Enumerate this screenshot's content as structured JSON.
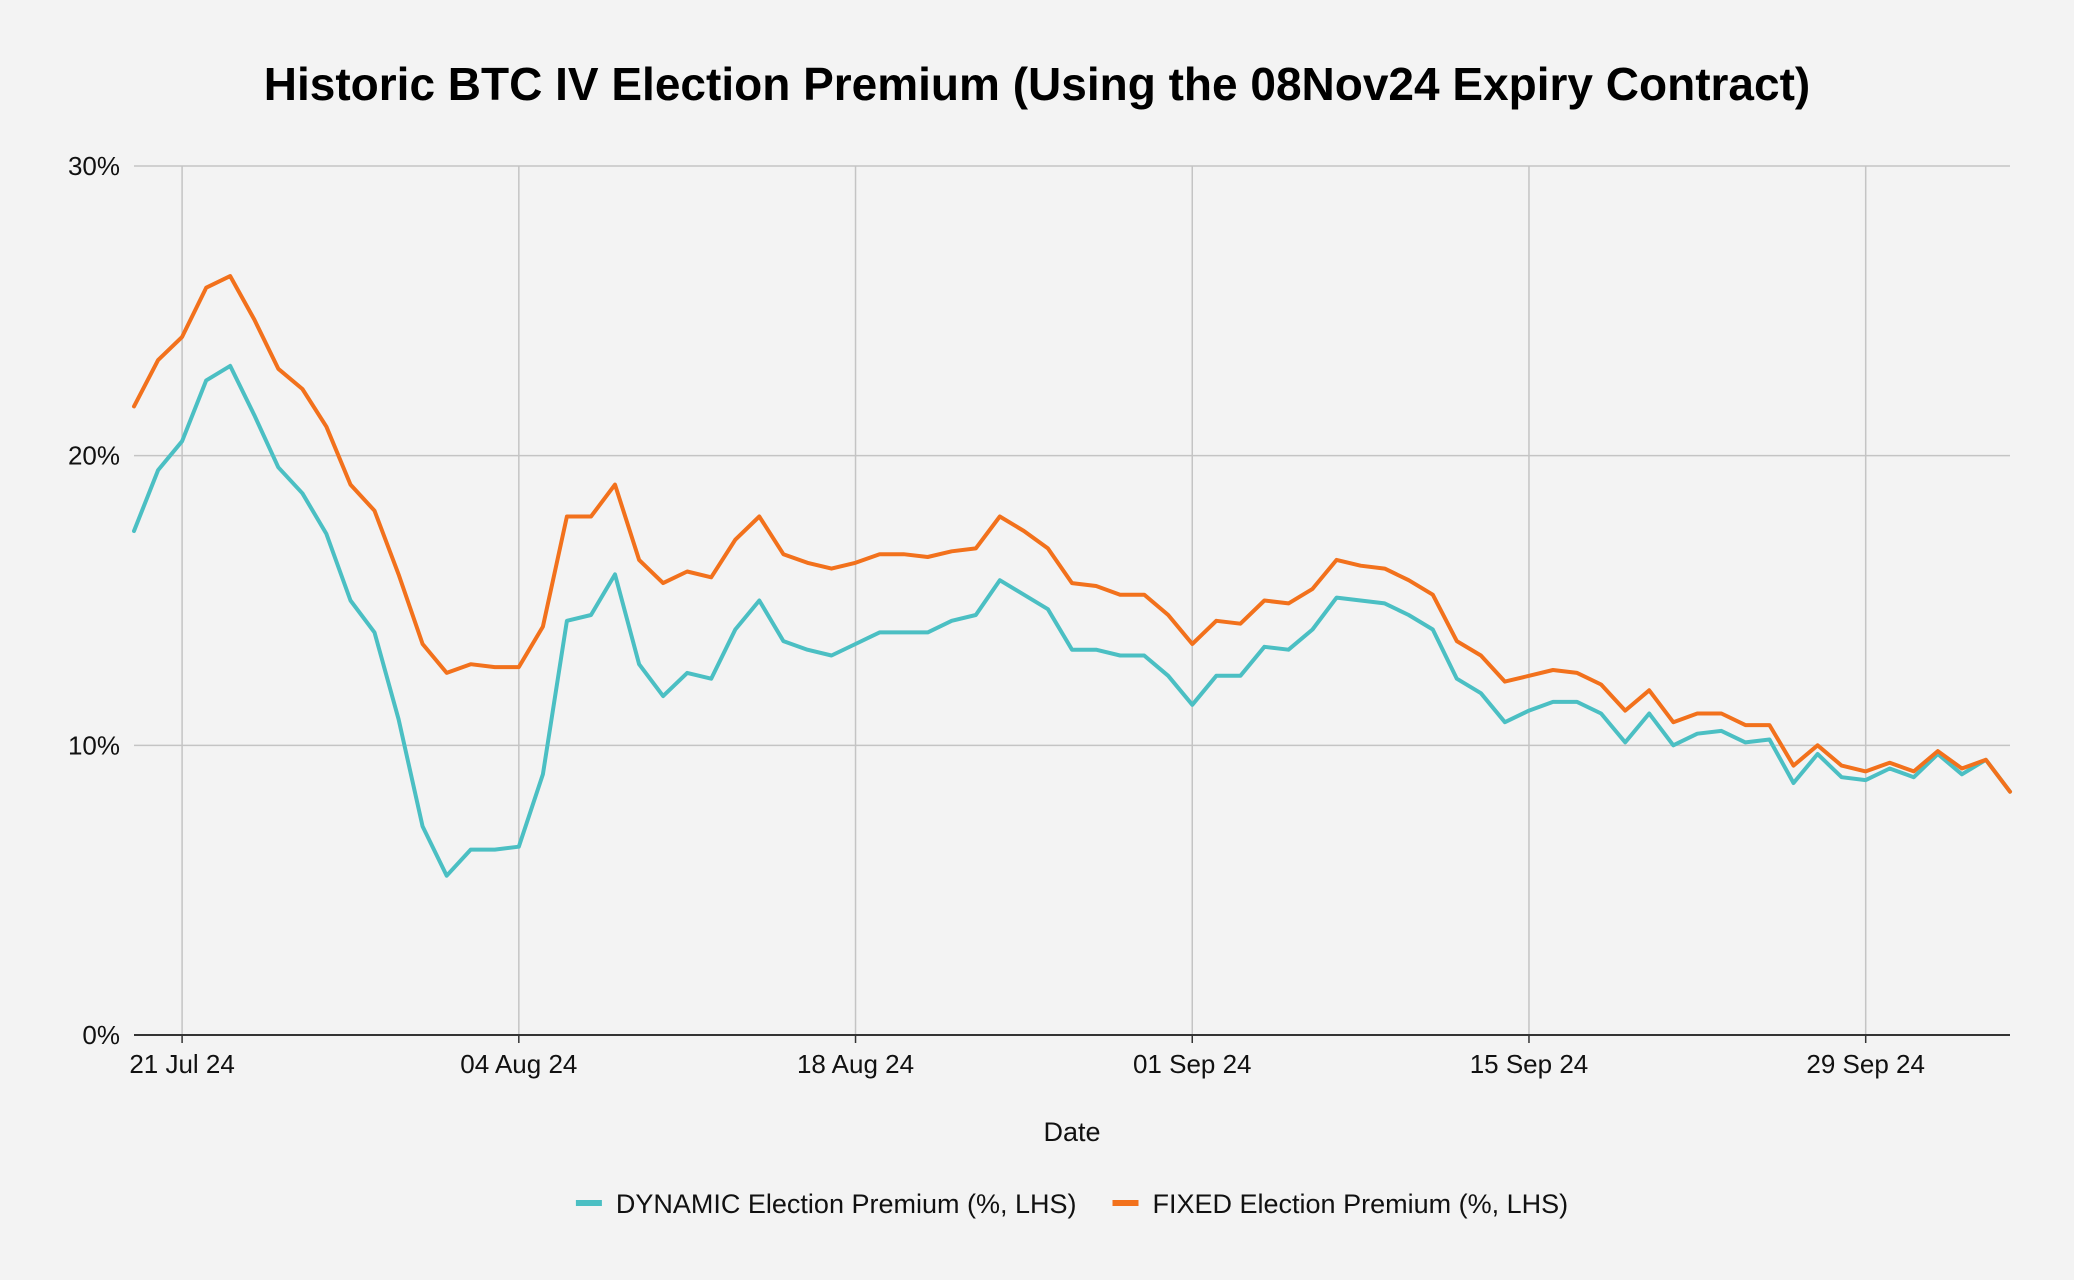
{
  "chart_data": {
    "type": "line",
    "title": "Historic BTC IV Election Premium (Using the 08Nov24 Expiry Contract)",
    "xlabel": "Date",
    "ylabel": "",
    "ylim": [
      0,
      30
    ],
    "x_start": "19 Jul 24",
    "x_range_days": [
      0,
      78
    ],
    "y_ticks": [
      0,
      10,
      20,
      30
    ],
    "y_tick_labels": [
      "0%",
      "10%",
      "20%",
      "30%"
    ],
    "x_ticks": [
      {
        "day": 2,
        "label": "21 Jul 24"
      },
      {
        "day": 16,
        "label": "04 Aug 24"
      },
      {
        "day": 30,
        "label": "18 Aug 24"
      },
      {
        "day": 44,
        "label": "01 Sep 24"
      },
      {
        "day": 58,
        "label": "15 Sep 24"
      },
      {
        "day": 72,
        "label": "29 Sep 24"
      }
    ],
    "grid": true,
    "legend_position": "bottom",
    "series": [
      {
        "name": "DYNAMIC Election Premium (%, LHS)",
        "color": "#4bbfc3",
        "values": [
          17.4,
          19.5,
          20.5,
          22.6,
          23.1,
          21.4,
          19.6,
          18.7,
          17.3,
          15.0,
          13.9,
          10.9,
          7.2,
          5.5,
          6.4,
          6.4,
          6.5,
          9.0,
          14.3,
          14.5,
          15.9,
          12.8,
          11.7,
          12.5,
          12.3,
          14.0,
          15.0,
          13.6,
          13.3,
          13.1,
          13.5,
          13.9,
          13.9,
          13.9,
          14.3,
          14.5,
          15.7,
          15.2,
          14.7,
          13.3,
          13.3,
          13.1,
          13.1,
          12.4,
          11.4,
          12.4,
          12.4,
          13.4,
          13.3,
          14.0,
          15.1,
          15.0,
          14.9,
          14.5,
          14.0,
          12.3,
          11.8,
          10.8,
          11.2,
          11.5,
          11.5,
          11.1,
          10.1,
          11.1,
          10.0,
          10.4,
          10.5,
          10.1,
          10.2,
          8.7,
          9.7,
          8.9,
          8.8,
          9.2,
          8.9,
          9.7,
          9.0,
          9.5,
          8.4
        ]
      },
      {
        "name": "FIXED Election Premium (%, LHS)",
        "color": "#f2711c",
        "values": [
          21.7,
          23.3,
          24.1,
          25.8,
          26.2,
          24.7,
          23.0,
          22.3,
          21.0,
          19.0,
          18.1,
          15.9,
          13.5,
          12.5,
          12.8,
          12.7,
          12.7,
          14.1,
          17.9,
          17.9,
          19.0,
          16.4,
          15.6,
          16.0,
          15.8,
          17.1,
          17.9,
          16.6,
          16.3,
          16.1,
          16.3,
          16.6,
          16.6,
          16.5,
          16.7,
          16.8,
          17.9,
          17.4,
          16.8,
          15.6,
          15.5,
          15.2,
          15.2,
          14.5,
          13.5,
          14.3,
          14.2,
          15.0,
          14.9,
          15.4,
          16.4,
          16.2,
          16.1,
          15.7,
          15.2,
          13.6,
          13.1,
          12.2,
          12.4,
          12.6,
          12.5,
          12.1,
          11.2,
          11.9,
          10.8,
          11.1,
          11.1,
          10.7,
          10.7,
          9.3,
          10.0,
          9.3,
          9.1,
          9.4,
          9.1,
          9.8,
          9.2,
          9.5,
          8.4
        ]
      }
    ]
  }
}
